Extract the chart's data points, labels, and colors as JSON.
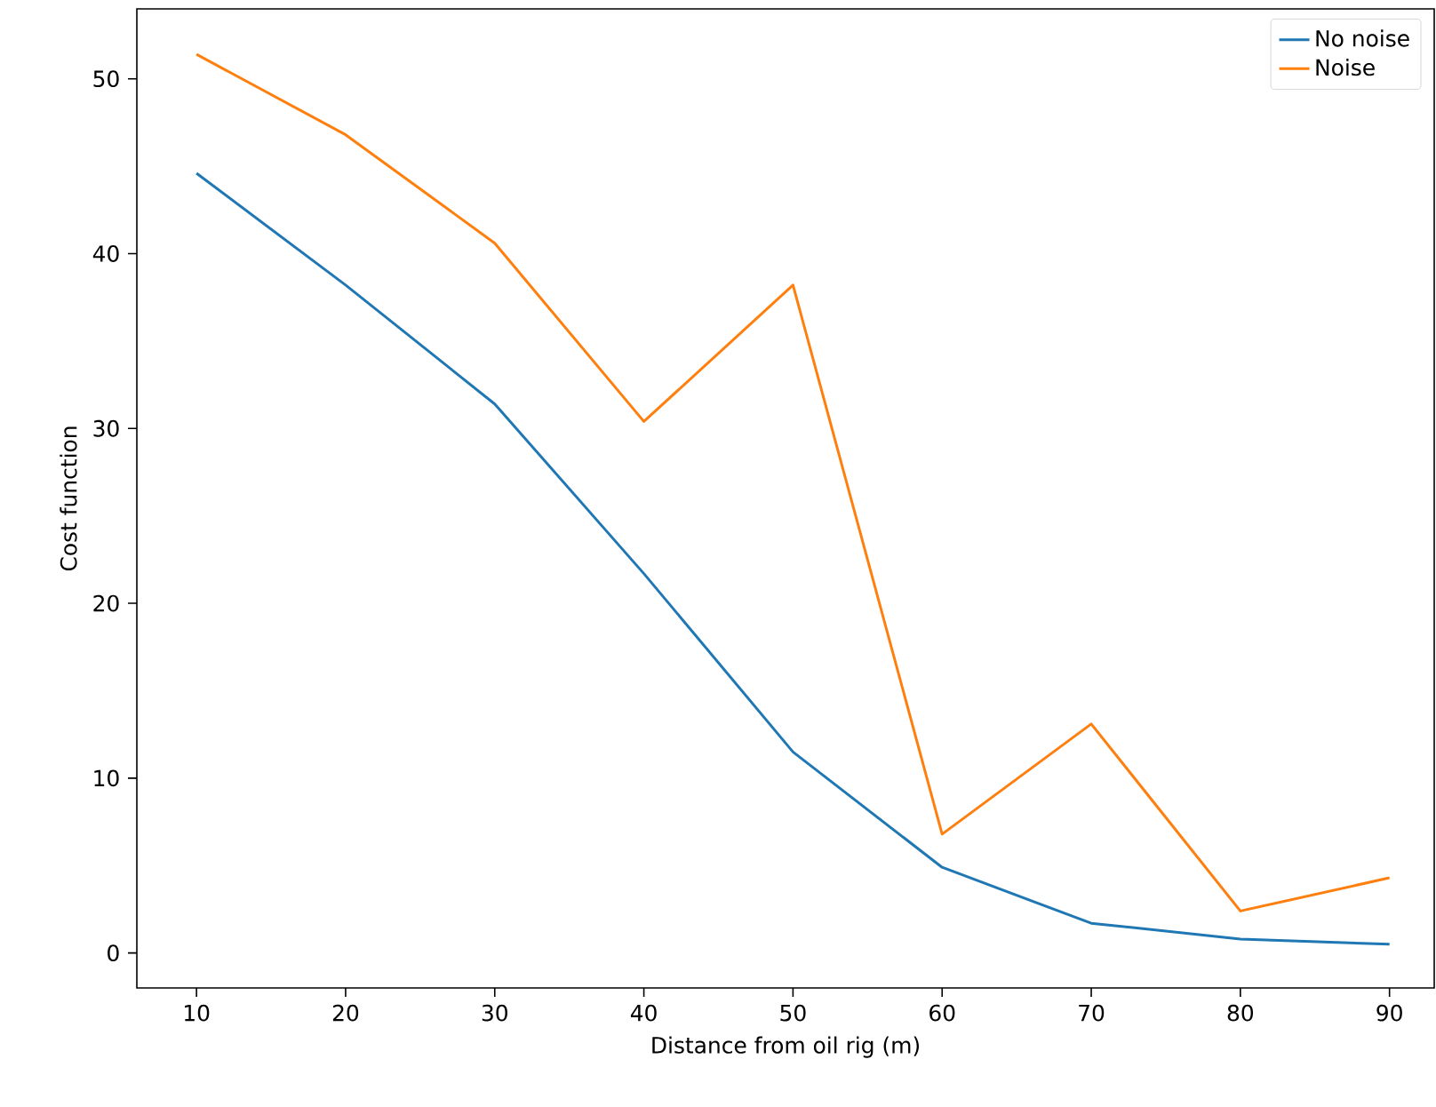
{
  "chart_data": {
    "type": "line",
    "xlabel": "Distance from oil rig (m)",
    "ylabel": "Cost function",
    "x": [
      10,
      20,
      30,
      40,
      50,
      60,
      70,
      80,
      90
    ],
    "series": [
      {
        "name": "No noise",
        "color": "#1f77b4",
        "values": [
          44.6,
          38.2,
          31.4,
          21.7,
          11.5,
          4.9,
          1.7,
          0.8,
          0.5
        ]
      },
      {
        "name": "Noise",
        "color": "#ff7f0e",
        "values": [
          51.4,
          46.8,
          40.6,
          30.4,
          38.2,
          6.8,
          13.1,
          2.4,
          4.3
        ]
      }
    ],
    "xlim": [
      6,
      93
    ],
    "ylim": [
      -2,
      54
    ],
    "xticks": [
      10,
      20,
      30,
      40,
      50,
      60,
      70,
      80,
      90
    ],
    "yticks": [
      0,
      10,
      20,
      30,
      40,
      50
    ],
    "grid": false,
    "legend": "top right",
    "marker": "none",
    "line_style": "solid"
  }
}
